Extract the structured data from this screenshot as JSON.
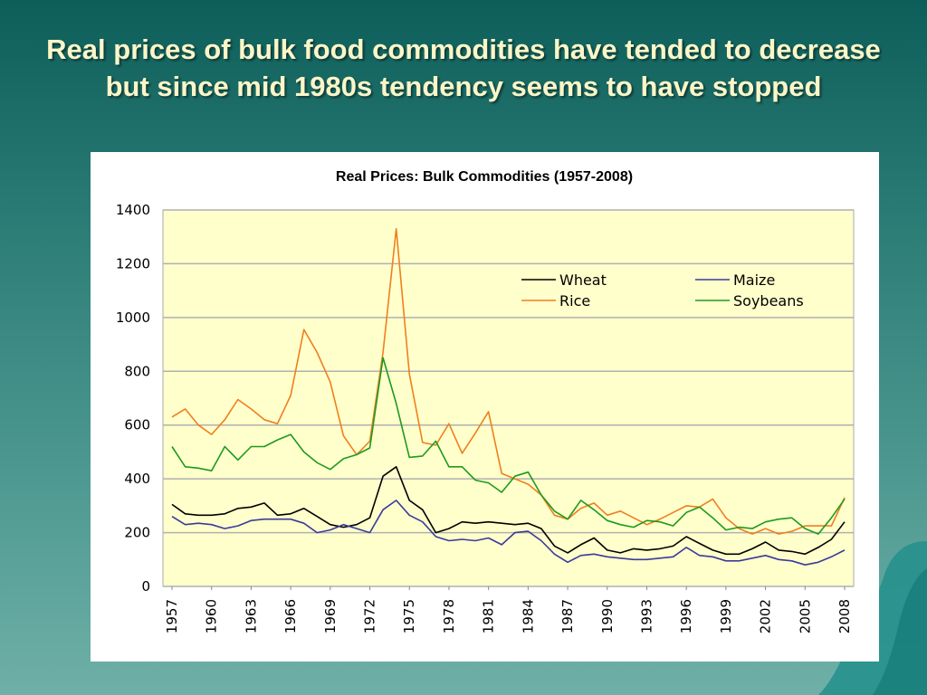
{
  "slide": {
    "title": "Real prices of bulk food commodities have tended to decrease but since mid 1980s tendency seems to have stopped"
  },
  "chart_data": {
    "type": "line",
    "title": "Real Prices: Bulk Commodities (1957-2008)",
    "xlabel": "",
    "ylabel": "",
    "ylim": [
      0,
      1400
    ],
    "yticks": [
      "0",
      "200",
      "400",
      "600",
      "800",
      "1000",
      "1200",
      "1400"
    ],
    "grid": true,
    "legend_position": "top-right",
    "x": [
      1957,
      1958,
      1959,
      1960,
      1961,
      1962,
      1963,
      1964,
      1965,
      1966,
      1967,
      1968,
      1969,
      1970,
      1971,
      1972,
      1973,
      1974,
      1975,
      1976,
      1977,
      1978,
      1979,
      1980,
      1981,
      1982,
      1983,
      1984,
      1985,
      1986,
      1987,
      1988,
      1989,
      1990,
      1991,
      1992,
      1993,
      1994,
      1995,
      1996,
      1997,
      1998,
      1999,
      2000,
      2001,
      2002,
      2003,
      2004,
      2005,
      2006,
      2007,
      2008
    ],
    "xtick_labels": [
      "1957",
      "1960",
      "1963",
      "1966",
      "1969",
      "1972",
      "1975",
      "1978",
      "1981",
      "1984",
      "1987",
      "1990",
      "1993",
      "1996",
      "1999",
      "2002",
      "2005",
      "2008"
    ],
    "series": [
      {
        "name": "Wheat",
        "color": "#000000",
        "values": [
          305,
          270,
          265,
          265,
          270,
          290,
          295,
          310,
          265,
          270,
          290,
          260,
          230,
          220,
          230,
          255,
          410,
          445,
          320,
          285,
          200,
          215,
          240,
          235,
          240,
          235,
          230,
          235,
          215,
          150,
          125,
          155,
          180,
          135,
          125,
          140,
          135,
          140,
          150,
          185,
          160,
          135,
          120,
          120,
          140,
          165,
          135,
          130,
          120,
          145,
          175,
          240
        ]
      },
      {
        "name": "Maize",
        "color": "#3a3a9a",
        "values": [
          260,
          230,
          235,
          230,
          215,
          225,
          245,
          250,
          250,
          250,
          235,
          200,
          210,
          230,
          215,
          200,
          285,
          320,
          265,
          240,
          185,
          170,
          175,
          170,
          180,
          155,
          200,
          205,
          170,
          120,
          90,
          115,
          120,
          110,
          105,
          100,
          100,
          105,
          110,
          145,
          115,
          110,
          95,
          95,
          105,
          115,
          100,
          95,
          80,
          90,
          110,
          135
        ]
      },
      {
        "name": "Rice",
        "color": "#f07f1e",
        "values": [
          630,
          660,
          600,
          565,
          620,
          695,
          660,
          620,
          605,
          710,
          955,
          870,
          760,
          560,
          490,
          540,
          870,
          1330,
          790,
          535,
          525,
          605,
          495,
          570,
          650,
          420,
          400,
          380,
          340,
          265,
          250,
          290,
          310,
          265,
          280,
          255,
          230,
          250,
          275,
          300,
          295,
          325,
          255,
          215,
          195,
          215,
          195,
          205,
          225,
          225,
          225,
          330
        ]
      },
      {
        "name": "Soybeans",
        "color": "#1f9a1f",
        "values": [
          520,
          445,
          440,
          430,
          520,
          470,
          520,
          520,
          545,
          565,
          500,
          460,
          435,
          475,
          490,
          515,
          850,
          680,
          480,
          485,
          540,
          445,
          445,
          395,
          385,
          350,
          410,
          425,
          340,
          280,
          250,
          320,
          285,
          245,
          230,
          220,
          245,
          240,
          225,
          275,
          295,
          255,
          210,
          220,
          215,
          240,
          250,
          255,
          215,
          195,
          255,
          325
        ]
      }
    ]
  }
}
